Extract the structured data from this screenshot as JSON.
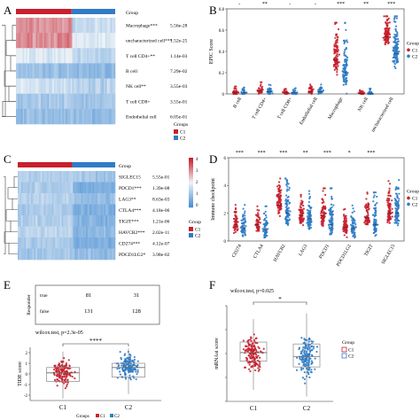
{
  "colors": {
    "c1": "#c8202d",
    "c2": "#2f7cc6",
    "hm_high": "#c8202d",
    "hm_low": "#4a8fd4",
    "hm_mid": "#eef3f7"
  },
  "panels": {
    "A": "A",
    "B": "B",
    "C": "C",
    "D": "D",
    "E": "E",
    "F": "F"
  },
  "chart_data": [
    {
      "panel": "A",
      "type": "heatmap",
      "group_label": "Group",
      "rows": [
        {
          "label": "Macrophage***",
          "p": "5.56e-28"
        },
        {
          "label": "uncharacterized cell***",
          "p": "1.52e-25"
        },
        {
          "label": "T cell CD4+**",
          "p": "1.14e-03"
        },
        {
          "label": "B cell",
          "p": "7.29e-02"
        },
        {
          "label": "NK cell**",
          "p": "3.55e-03"
        },
        {
          "label": "T cell CD8+",
          "p": "3.55e-01"
        },
        {
          "label": "Endothelial cell",
          "p": "6.05e-01"
        }
      ],
      "legend_title": "Groups",
      "legend_items": [
        "C1",
        "C2"
      ]
    },
    {
      "panel": "B",
      "type": "scatter",
      "ylabel": "EPIC Score",
      "categories": [
        "B cell",
        "T cell CD4+",
        "T cell CD8+",
        "Endothelial cell",
        "Macrophage",
        "NK cell",
        "uncharacterized cell"
      ],
      "significance": [
        "-",
        "**",
        "-",
        "-",
        "***",
        "**",
        "***"
      ],
      "ylim": [
        0,
        0.8
      ],
      "yticks": [
        0.0,
        0.2,
        0.4,
        0.6,
        0.8
      ],
      "spread_top": [
        0.07,
        0.11,
        0.06,
        0.09,
        0.67,
        0.05,
        0.73
      ],
      "median_c1": [
        0.01,
        0.03,
        0.01,
        0.02,
        0.32,
        0.005,
        0.54
      ],
      "median_c2": [
        0.01,
        0.02,
        0.01,
        0.02,
        0.2,
        0.003,
        0.38
      ],
      "legend_title": "Group",
      "legend_items": [
        "C1",
        "C2"
      ]
    },
    {
      "panel": "C",
      "type": "heatmap",
      "group_label": "Group",
      "rows": [
        {
          "label": "SIGLEC15",
          "p": "5.55e-01"
        },
        {
          "label": "PDCD1***",
          "p": "1.39e-08"
        },
        {
          "label": "LAG3**",
          "p": "8.63e-03"
        },
        {
          "label": "CTLA4***",
          "p": "4.18e-06"
        },
        {
          "label": "TIGIT***",
          "p": "1.21e-06"
        },
        {
          "label": "HAVCR2***",
          "p": "2.02e-11"
        },
        {
          "label": "CD274***",
          "p": "4.12e-07"
        },
        {
          "label": "PDCD1LG2*",
          "p": "3.98e-02"
        }
      ],
      "colorbar_ticks": [
        "4",
        "3",
        "2",
        "1",
        "0"
      ],
      "legend_title": "Group",
      "legend_items": [
        "C1",
        "C2"
      ]
    },
    {
      "panel": "D",
      "type": "scatter",
      "ylabel": "Immune checkpoint",
      "categories": [
        "CD274",
        "CTLA4",
        "HAVCR2",
        "LAG3",
        "PDCD1",
        "PDCD1LG2",
        "TIGIT",
        "SIGLEC15"
      ],
      "significance": [
        "***",
        "***",
        "***",
        "**",
        "***",
        "*",
        "***",
        ""
      ],
      "ylim": [
        0,
        6
      ],
      "yticks": [
        0,
        2,
        4,
        6
      ],
      "spread_top": [
        2.6,
        2.5,
        4.5,
        3.6,
        3.8,
        2.6,
        3.5,
        4.4
      ],
      "median_c1": [
        1.2,
        1.2,
        2.6,
        1.8,
        1.8,
        1.0,
        1.7,
        2.0
      ],
      "median_c2": [
        0.9,
        0.8,
        2.0,
        1.6,
        1.2,
        0.9,
        1.2,
        2.0
      ],
      "legend_title": "Group",
      "legend_items": [
        "C1",
        "C2"
      ]
    },
    {
      "panel": "E",
      "type": "table",
      "row_title": "Responder",
      "rows": [
        {
          "label": "true",
          "values": [
            "81",
            "31"
          ]
        },
        {
          "label": "false",
          "values": [
            "131",
            "128"
          ]
        }
      ]
    },
    {
      "panel": "E",
      "type": "box",
      "annotation": "wilcox.test, p=2.3e-05",
      "significance": "****",
      "ylabel": "TIDE score",
      "categories": [
        "C1",
        "C2"
      ],
      "ylim": [
        -2.5,
        2.5
      ],
      "yticks": [
        -2,
        -1,
        0,
        1,
        2
      ],
      "box": [
        {
          "q1": -0.7,
          "median": 0.1,
          "q3": 0.6,
          "low": -2.3,
          "high": 2.1
        },
        {
          "q1": -0.3,
          "median": 0.6,
          "q3": 1.0,
          "low": -1.9,
          "high": 2.4
        }
      ],
      "legend_title": "Groups",
      "legend_items": [
        "C1",
        "C2"
      ]
    },
    {
      "panel": "F",
      "type": "box",
      "annotation": "wilcox.test, p=0.025",
      "significance": "*",
      "ylabel": "mRNAsi score",
      "categories": [
        "C1",
        "C2"
      ],
      "ylim": [
        0,
        1
      ],
      "yticks": [
        0.0,
        0.25,
        0.5,
        0.75,
        1.0
      ],
      "box": [
        {
          "q1": 0.42,
          "median": 0.51,
          "q3": 0.62,
          "low": 0.12,
          "high": 0.86
        },
        {
          "q1": 0.36,
          "median": 0.47,
          "q3": 0.6,
          "low": 0.05,
          "high": 0.92
        }
      ],
      "legend_title": "Group",
      "legend_items": [
        "C1",
        "C2"
      ]
    }
  ]
}
